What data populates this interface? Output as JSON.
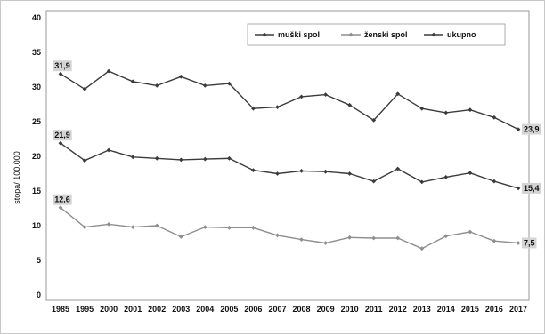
{
  "chart_data": {
    "type": "line",
    "categories": [
      "1985",
      "1995",
      "2000",
      "2001",
      "2002",
      "2003",
      "2004",
      "2005",
      "2006",
      "2007",
      "2008",
      "2009",
      "2010",
      "2011",
      "2012",
      "2013",
      "2014",
      "2015",
      "2016",
      "2017"
    ],
    "series": [
      {
        "name": "muški spol",
        "color": "#3b3b3b",
        "values": [
          31.9,
          29.7,
          32.3,
          30.8,
          30.2,
          31.5,
          30.2,
          30.5,
          26.9,
          27.1,
          28.6,
          28.9,
          27.4,
          25.2,
          29.0,
          26.9,
          26.3,
          26.7,
          25.6,
          23.9
        ]
      },
      {
        "name": "ženski spol",
        "color": "#8e8e8e",
        "values": [
          12.6,
          9.8,
          10.2,
          9.8,
          10.0,
          8.4,
          9.8,
          9.7,
          9.7,
          8.6,
          8.0,
          7.5,
          8.3,
          8.2,
          8.2,
          6.7,
          8.5,
          9.1,
          7.8,
          7.5
        ]
      },
      {
        "name": "ukupno",
        "color": "#3b3b3b",
        "values": [
          21.9,
          19.4,
          20.9,
          19.9,
          19.7,
          19.5,
          19.6,
          19.7,
          18.0,
          17.5,
          17.9,
          17.8,
          17.5,
          16.4,
          18.2,
          16.3,
          17.0,
          17.6,
          16.4,
          15.4
        ]
      }
    ],
    "ylabel": "stopa/ 100.000",
    "ylim": [
      0,
      40
    ],
    "y_ticks": [
      0,
      5,
      10,
      15,
      20,
      25,
      30,
      35,
      40
    ],
    "grid": false,
    "legend_position": "top-right",
    "data_labels": [
      {
        "series": 0,
        "index": 0,
        "text": "31,9"
      },
      {
        "series": 2,
        "index": 0,
        "text": "21,9"
      },
      {
        "series": 1,
        "index": 0,
        "text": "12,6"
      },
      {
        "series": 0,
        "index": 19,
        "text": "23,9"
      },
      {
        "series": 2,
        "index": 19,
        "text": "15,4"
      },
      {
        "series": 1,
        "index": 19,
        "text": "7,5"
      }
    ]
  }
}
